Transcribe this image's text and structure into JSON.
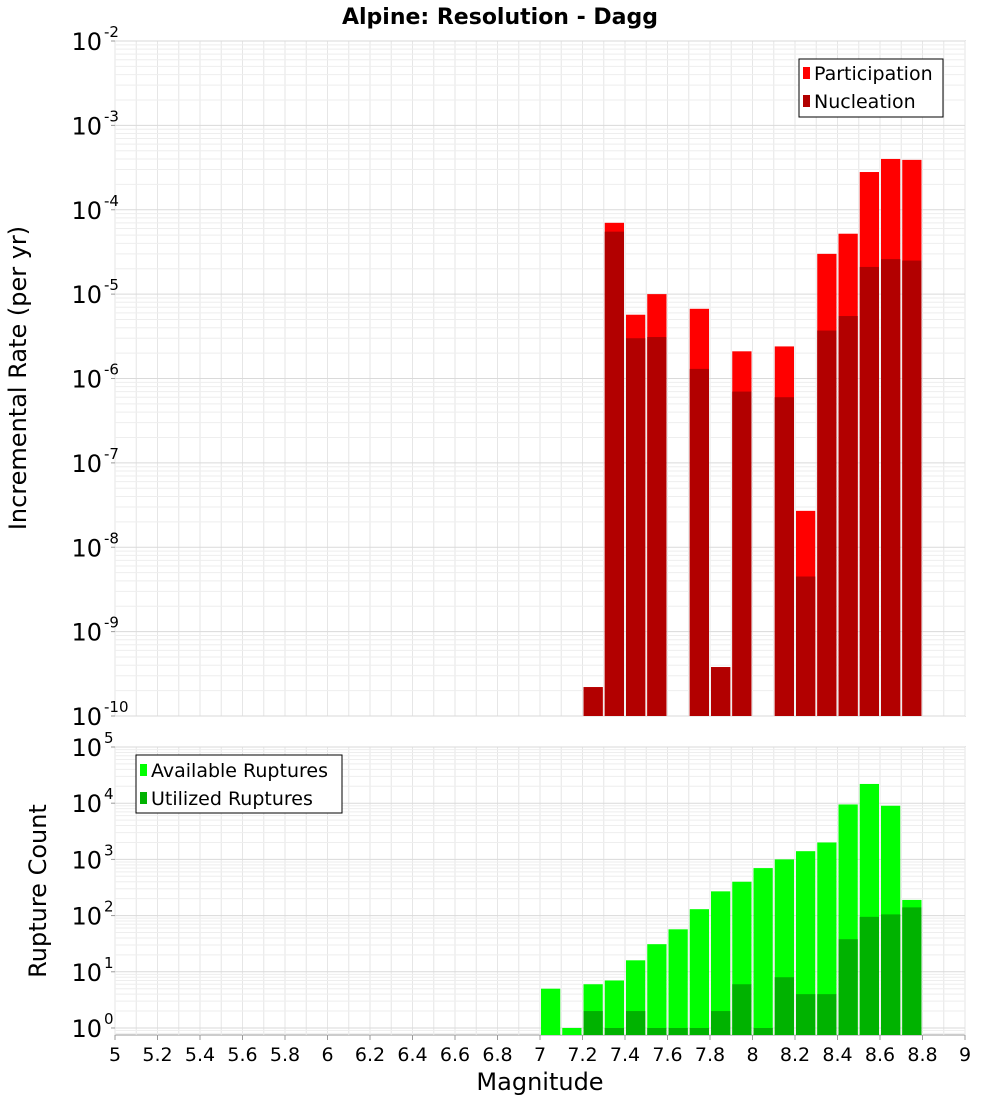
{
  "chart_data": [
    {
      "type": "bar",
      "title": "Alpine: Resolution - Dagg",
      "xlabel": "",
      "ylabel": "Incremental Rate (per yr)",
      "y_scale": "log",
      "ylim": [
        1e-10,
        0.01
      ],
      "xlim": [
        5,
        9
      ],
      "bar_width": 0.1,
      "grid": true,
      "legend_position": "top-right",
      "y_tick_exponents": [
        "-10",
        "-9",
        "-8",
        "-7",
        "-6",
        "-5",
        "-4",
        "-3",
        "-2"
      ],
      "y_tick_base": "10",
      "series": [
        {
          "name": "Participation",
          "color": "#ff0000",
          "x": [
            7.25,
            7.35,
            7.45,
            7.55,
            7.75,
            7.85,
            7.95,
            8.15,
            8.25,
            8.35,
            8.45,
            8.55,
            8.65,
            8.75
          ],
          "values": [
            2.2e-10,
            7e-05,
            5.7e-06,
            1e-05,
            6.7e-06,
            3.8e-10,
            2.1e-06,
            2.4e-06,
            2.7e-08,
            3e-05,
            5.2e-05,
            0.00028,
            0.0004,
            0.00039
          ]
        },
        {
          "name": "Nucleation",
          "color": "#b20000",
          "x": [
            7.25,
            7.35,
            7.45,
            7.55,
            7.75,
            7.85,
            7.95,
            8.15,
            8.25,
            8.35,
            8.45,
            8.55,
            8.65,
            8.75
          ],
          "values": [
            2.2e-10,
            5.5e-05,
            3e-06,
            3.1e-06,
            1.3e-06,
            3.8e-10,
            7e-07,
            6e-07,
            4.5e-09,
            3.7e-06,
            5.5e-06,
            2.1e-05,
            2.6e-05,
            2.5e-05
          ]
        }
      ]
    },
    {
      "type": "bar",
      "xlabel": "Magnitude",
      "ylabel": "Rupture Count",
      "y_scale": "log",
      "ylim": [
        0.75,
        100000
      ],
      "xlim": [
        5,
        9
      ],
      "bar_width": 0.1,
      "grid": true,
      "legend_position": "top-left",
      "x_ticks": [
        "5",
        "5.2",
        "5.4",
        "5.6",
        "5.8",
        "6",
        "6.2",
        "6.4",
        "6.6",
        "6.8",
        "7",
        "7.2",
        "7.4",
        "7.6",
        "7.8",
        "8",
        "8.2",
        "8.4",
        "8.6",
        "8.8",
        "9"
      ],
      "y_tick_exponents": [
        "0",
        "1",
        "2",
        "3",
        "4",
        "5"
      ],
      "y_tick_base": "10",
      "series": [
        {
          "name": "Available Ruptures",
          "color": "#00ff00",
          "x": [
            7.05,
            7.15,
            7.25,
            7.35,
            7.45,
            7.55,
            7.65,
            7.75,
            7.85,
            7.95,
            8.05,
            8.15,
            8.25,
            8.35,
            8.45,
            8.55,
            8.65,
            8.75
          ],
          "values": [
            5,
            1,
            6,
            7,
            16,
            31,
            57,
            130,
            270,
            400,
            700,
            1000,
            1400,
            2000,
            9500,
            22000,
            9000,
            190
          ]
        },
        {
          "name": "Utilized Ruptures",
          "color": "#00b200",
          "x": [
            7.25,
            7.35,
            7.45,
            7.55,
            7.65,
            7.75,
            7.85,
            7.95,
            8.05,
            8.15,
            8.25,
            8.35,
            8.45,
            8.55,
            8.65,
            8.75
          ],
          "values": [
            2,
            1,
            2,
            1,
            1,
            1,
            2,
            6,
            1,
            8,
            4,
            4,
            38,
            95,
            105,
            140
          ]
        }
      ]
    }
  ]
}
